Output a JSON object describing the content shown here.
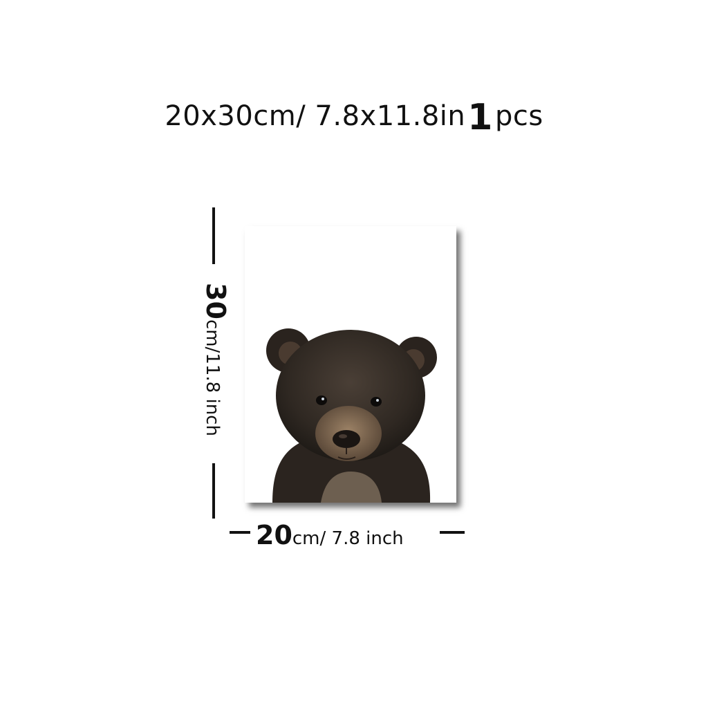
{
  "title": {
    "size": "20x30cm/ 7.8x11.8in",
    "quantity": "1",
    "unit": "pcs"
  },
  "poster": {
    "subject_icon": "bear-cub-icon"
  },
  "height_dimension": {
    "value": "30",
    "unit": "cm/11.8 inch"
  },
  "width_dimension": {
    "value": "20",
    "unit": "cm/ 7.8 inch"
  }
}
